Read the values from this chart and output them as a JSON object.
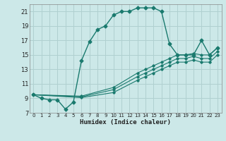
{
  "xlabel": "Humidex (Indice chaleur)",
  "background_color": "#cce8e8",
  "grid_color": "#b0d0d0",
  "line_color": "#1a7a6e",
  "xlim": [
    -0.5,
    23.5
  ],
  "ylim": [
    7,
    22
  ],
  "xticks": [
    0,
    1,
    2,
    3,
    4,
    5,
    6,
    7,
    8,
    9,
    10,
    11,
    12,
    13,
    14,
    15,
    16,
    17,
    18,
    19,
    20,
    21,
    22,
    23
  ],
  "yticks": [
    7,
    9,
    11,
    13,
    15,
    17,
    19,
    21
  ],
  "main_curve": {
    "x": [
      0,
      1,
      2,
      3,
      4,
      5,
      6,
      7,
      8,
      9,
      10,
      11,
      12,
      13,
      14,
      15,
      16,
      17,
      18,
      19,
      20,
      21,
      22,
      23
    ],
    "y": [
      9.5,
      9.0,
      8.8,
      8.8,
      7.5,
      8.5,
      14.2,
      16.8,
      18.5,
      19.0,
      20.5,
      21.0,
      21.0,
      21.5,
      21.5,
      21.5,
      21.0,
      16.5,
      15.0,
      15.0,
      15.0,
      17.0,
      15.0,
      16.0
    ]
  },
  "trend_lines": [
    {
      "x": [
        0,
        6,
        10,
        13,
        14,
        15,
        16,
        17,
        18,
        19,
        20,
        21,
        22,
        23
      ],
      "y": [
        9.5,
        9.3,
        10.5,
        12.5,
        13.0,
        13.5,
        14.0,
        14.5,
        15.0,
        15.0,
        15.2,
        15.0,
        15.0,
        16.0
      ]
    },
    {
      "x": [
        0,
        6,
        10,
        13,
        14,
        15,
        16,
        17,
        18,
        19,
        20,
        21,
        22,
        23
      ],
      "y": [
        9.5,
        9.2,
        10.2,
        12.0,
        12.5,
        13.0,
        13.5,
        14.0,
        14.5,
        14.5,
        14.8,
        14.5,
        14.5,
        15.5
      ]
    },
    {
      "x": [
        0,
        6,
        10,
        13,
        14,
        15,
        16,
        17,
        18,
        19,
        20,
        21,
        22,
        23
      ],
      "y": [
        9.5,
        9.1,
        9.8,
        11.5,
        12.0,
        12.5,
        13.0,
        13.5,
        14.0,
        14.0,
        14.3,
        14.0,
        14.0,
        15.0
      ]
    }
  ]
}
